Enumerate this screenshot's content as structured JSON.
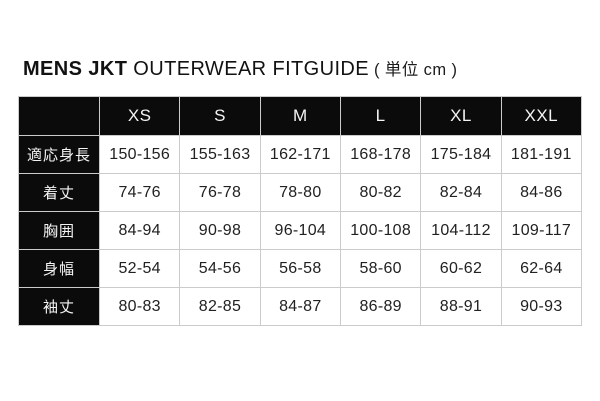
{
  "title": {
    "brand": "MENS JKT",
    "rest": " OUTERWEAR FITGUIDE",
    "unit": "( 単位 cm )"
  },
  "colors": {
    "header_bg": "#0b0b0b",
    "header_text": "#f4f4f4",
    "cell_bg": "#ffffff",
    "cell_text": "#212121",
    "grid_line": "#cbcbcb",
    "page_bg": "#ffffff"
  },
  "chart_data": {
    "type": "table",
    "title": "MENS JKT OUTERWEAR FITGUIDE ( 単位 cm )",
    "unit": "cm",
    "corner_label": "",
    "columns": [
      "XS",
      "S",
      "M",
      "L",
      "XL",
      "XXL"
    ],
    "rows": [
      {
        "label": "適応身長",
        "values": [
          "150-156",
          "155-163",
          "162-171",
          "168-178",
          "175-184",
          "181-191"
        ]
      },
      {
        "label": "着丈",
        "values": [
          "74-76",
          "76-78",
          "78-80",
          "80-82",
          "82-84",
          "84-86"
        ]
      },
      {
        "label": "胸囲",
        "values": [
          "84-94",
          "90-98",
          "96-104",
          "100-108",
          "104-112",
          "109-117"
        ]
      },
      {
        "label": "身幅",
        "values": [
          "52-54",
          "54-56",
          "56-58",
          "58-60",
          "60-62",
          "62-64"
        ]
      },
      {
        "label": "袖丈",
        "values": [
          "80-83",
          "82-85",
          "84-87",
          "86-89",
          "88-91",
          "90-93"
        ]
      }
    ]
  }
}
